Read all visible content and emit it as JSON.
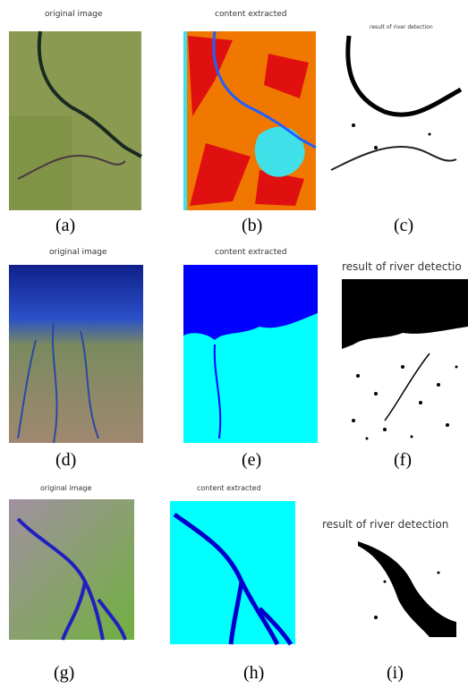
{
  "figure": {
    "panels": [
      {
        "title": "original image",
        "caption": "(a)"
      },
      {
        "title": "content extracted",
        "caption": "(b)"
      },
      {
        "title": "result of river detection",
        "caption": "(c)"
      },
      {
        "title": "original image",
        "caption": "(d)"
      },
      {
        "title": "content extracted",
        "caption": "(e)"
      },
      {
        "title": "result of river detectio",
        "caption": "(f)"
      },
      {
        "title": "original image",
        "caption": "(g)"
      },
      {
        "title": "content extracted",
        "caption": "(h)"
      },
      {
        "title": "result of river detection",
        "caption": "(i)"
      }
    ]
  }
}
